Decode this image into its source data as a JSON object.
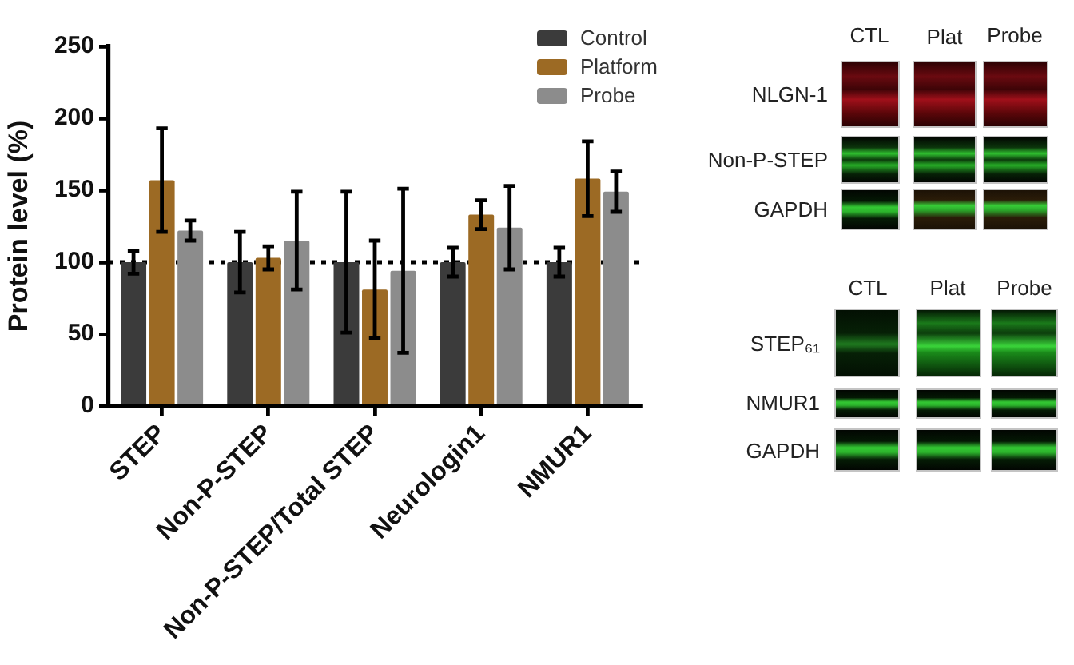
{
  "chart_data": {
    "type": "bar",
    "ylabel": "Protein level (%)",
    "categories": [
      "STEP",
      "Non-P-STEP",
      "Non-P-STEP/Total STEP",
      "Neurologin1",
      "NMUR1"
    ],
    "series": [
      {
        "name": "Control",
        "color": "#3b3b3b",
        "values": [
          100,
          100,
          100,
          100,
          100
        ],
        "errors": [
          8,
          21,
          49,
          10,
          10
        ]
      },
      {
        "name": "Platform",
        "color": "#9c6a24",
        "values": [
          157,
          103,
          81,
          133,
          158
        ],
        "errors": [
          36,
          8,
          34,
          10,
          26
        ]
      },
      {
        "name": "Probe",
        "color": "#8c8c8c",
        "values": [
          122,
          115,
          94,
          124,
          149
        ],
        "errors": [
          7,
          34,
          57,
          29,
          14
        ]
      }
    ],
    "ylim": [
      0,
      250
    ],
    "yticks": [
      0,
      50,
      100,
      150,
      200,
      250
    ],
    "legend": "top right",
    "ref_lines": [
      {
        "axis": "y",
        "value": 100,
        "line_style": "dotted",
        "color": "#000000"
      }
    ],
    "annotations": [
      "CTL",
      "Plat",
      "Probe",
      "NLGN-1",
      "Non-P-STEP",
      "GAPDH",
      "CTL",
      "Plat",
      "Probe",
      "STEP₆₁",
      "NMUR1",
      "GAPDH"
    ]
  }
}
